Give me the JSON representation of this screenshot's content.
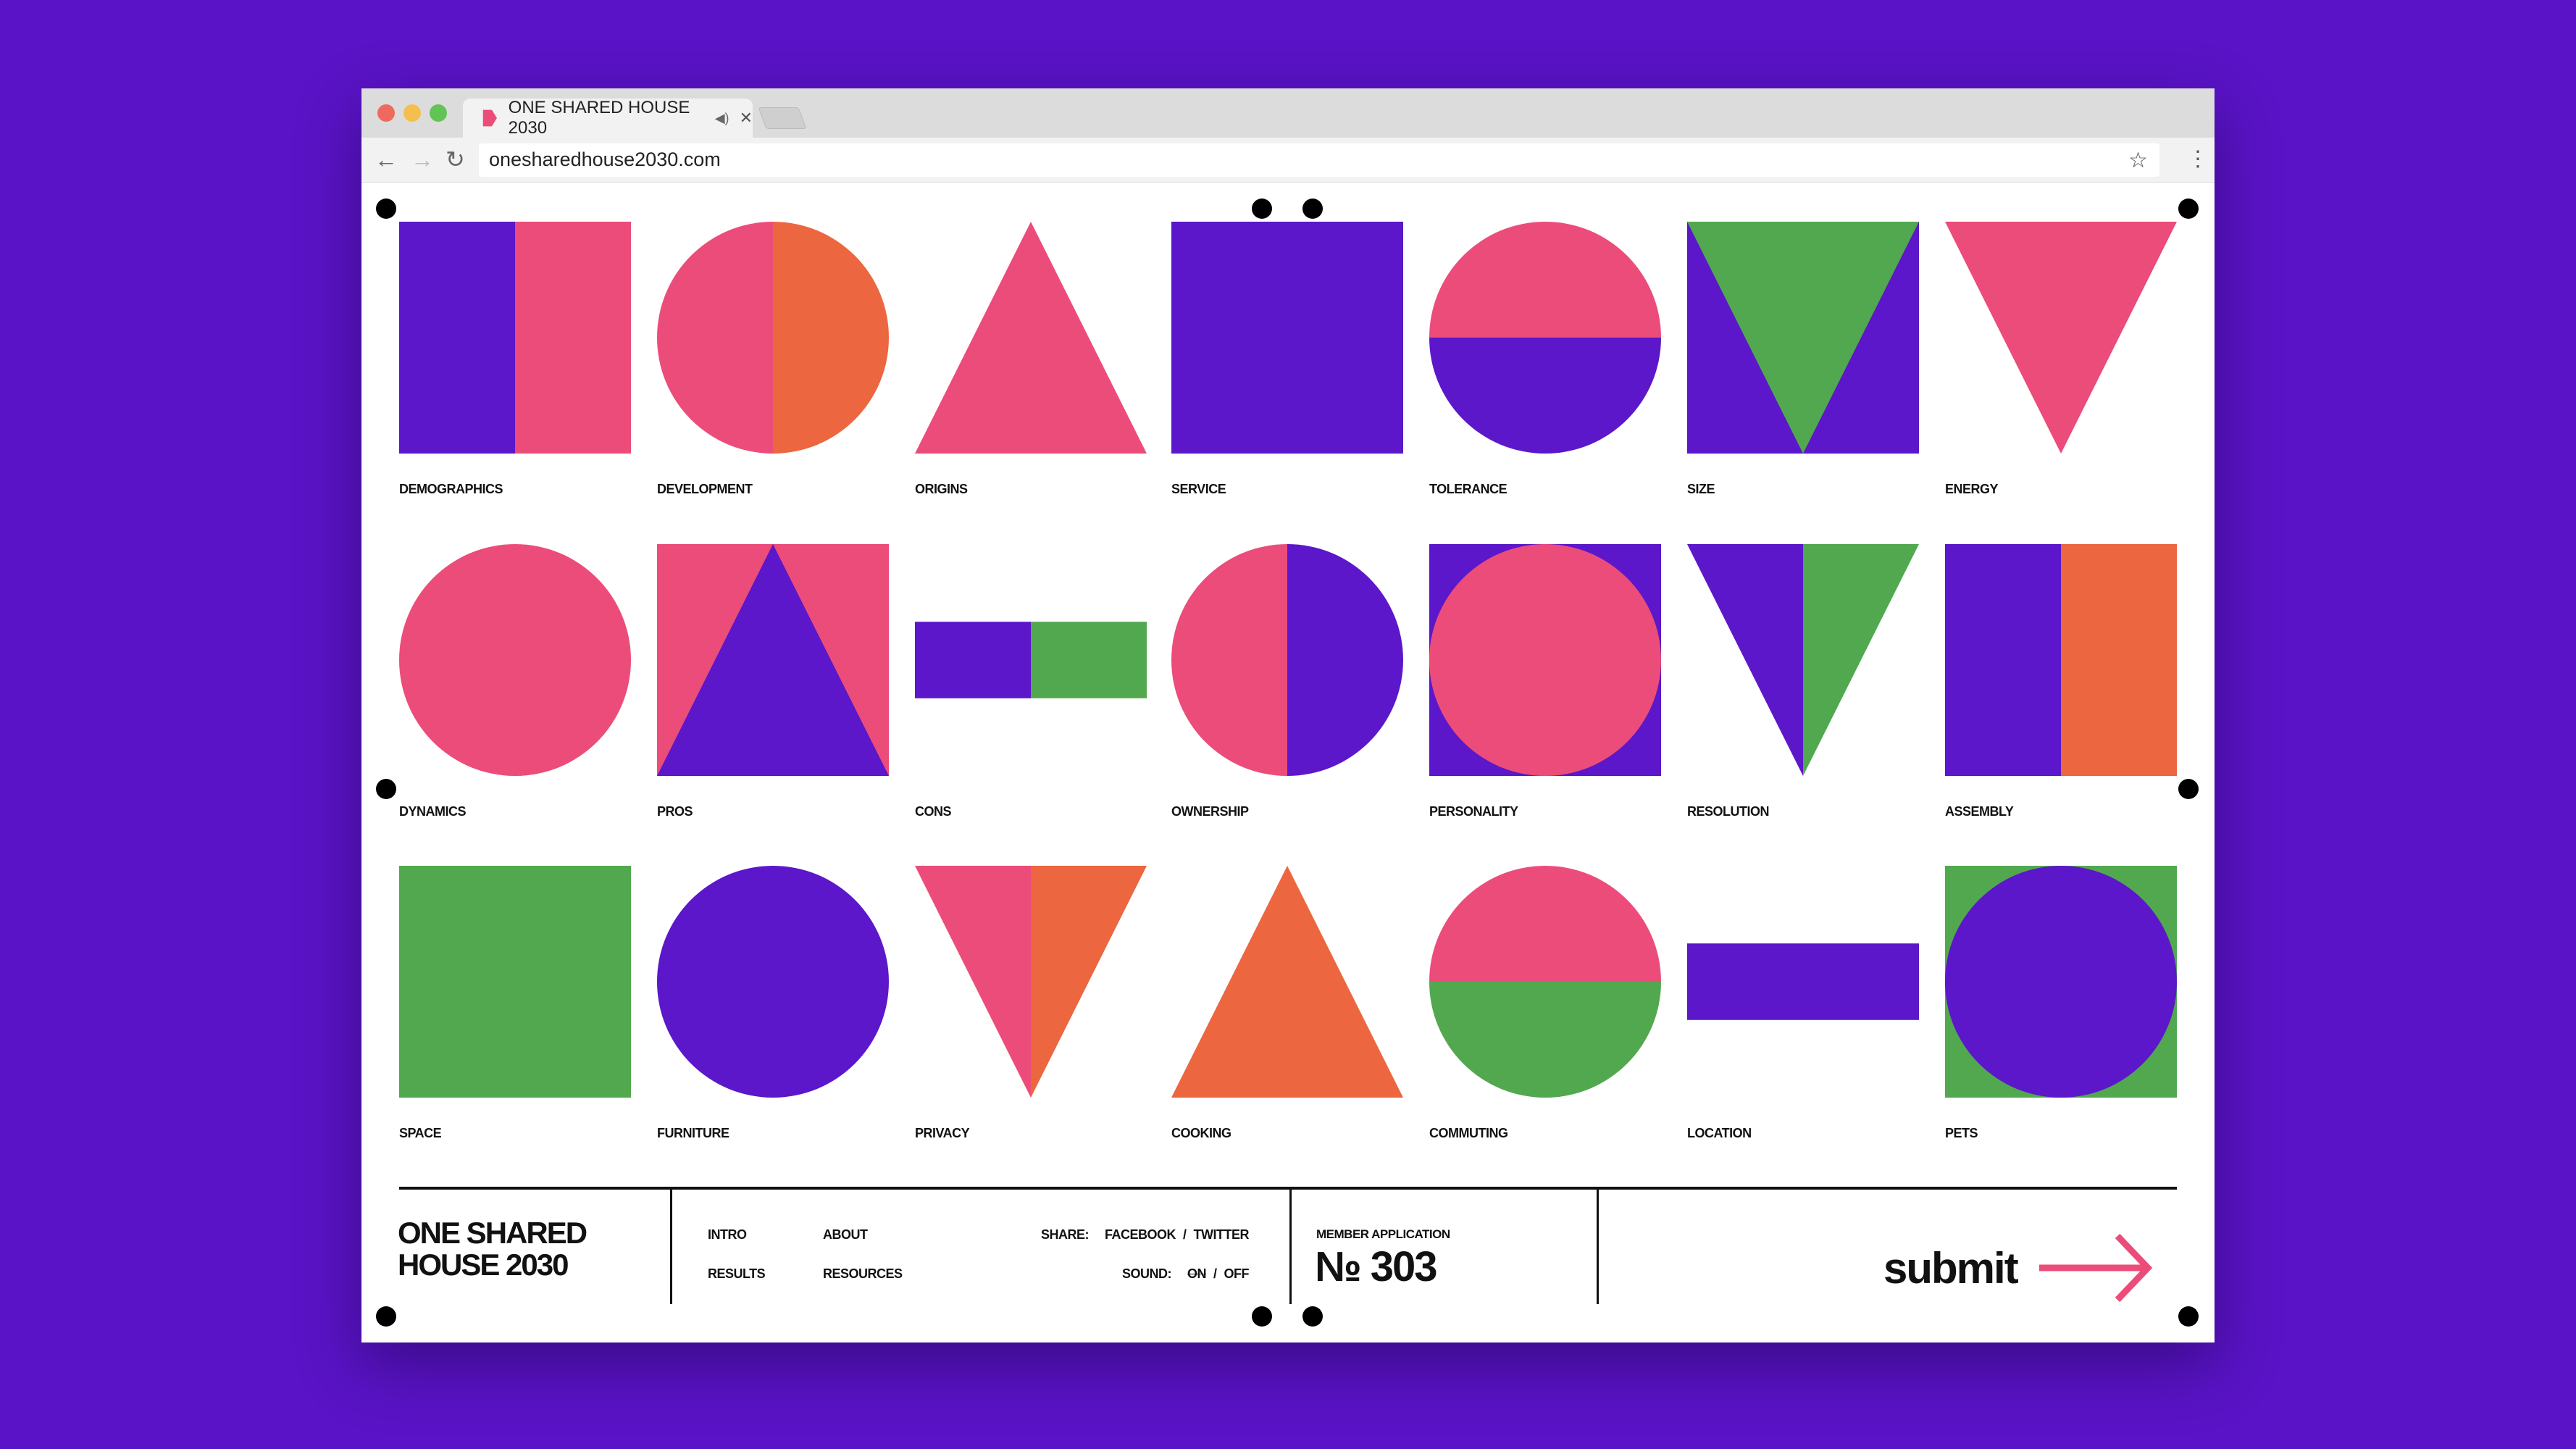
{
  "browser": {
    "tab_title": "ONE SHARED HOUSE 2030",
    "url": "onesharedhouse2030.com",
    "icons": [
      "back-icon",
      "forward-icon",
      "reload-icon",
      "star-icon",
      "menu-icon",
      "speaker-icon",
      "close-icon"
    ]
  },
  "colors": {
    "background": "#5a13c6",
    "purple": "#5b17c9",
    "pink": "#ec4c7a",
    "orange": "#ec6640",
    "green": "#52a84f"
  },
  "grid": [
    {
      "label": "DEMOGRAPHICS",
      "shape": "square-split-v",
      "colors": [
        "purple",
        "pink"
      ]
    },
    {
      "label": "DEVELOPMENT",
      "shape": "circle-split-v",
      "colors": [
        "pink",
        "orange"
      ]
    },
    {
      "label": "ORIGINS",
      "shape": "triangle-up",
      "colors": [
        "pink"
      ]
    },
    {
      "label": "SERVICE",
      "shape": "square",
      "colors": [
        "purple"
      ]
    },
    {
      "label": "TOLERANCE",
      "shape": "circle-split-h",
      "colors": [
        "pink",
        "purple"
      ]
    },
    {
      "label": "SIZE",
      "shape": "square-with-triangle-down",
      "colors": [
        "purple",
        "green"
      ]
    },
    {
      "label": "ENERGY",
      "shape": "triangle-down",
      "colors": [
        "pink"
      ]
    },
    {
      "label": "DYNAMICS",
      "shape": "circle",
      "colors": [
        "pink"
      ]
    },
    {
      "label": "PROS",
      "shape": "square-with-triangle-up",
      "colors": [
        "pink",
        "purple"
      ]
    },
    {
      "label": "CONS",
      "shape": "bar-split-v",
      "colors": [
        "purple",
        "green"
      ]
    },
    {
      "label": "OWNERSHIP",
      "shape": "circle-split-v",
      "colors": [
        "pink",
        "purple"
      ]
    },
    {
      "label": "PERSONALITY",
      "shape": "square-with-circle",
      "colors": [
        "purple",
        "pink"
      ]
    },
    {
      "label": "RESOLUTION",
      "shape": "triangle-down-split",
      "colors": [
        "purple",
        "green"
      ]
    },
    {
      "label": "ASSEMBLY",
      "shape": "square-split-v",
      "colors": [
        "purple",
        "orange"
      ]
    },
    {
      "label": "SPACE",
      "shape": "square",
      "colors": [
        "green"
      ]
    },
    {
      "label": "FURNITURE",
      "shape": "circle",
      "colors": [
        "purple"
      ]
    },
    {
      "label": "PRIVACY",
      "shape": "triangle-down-split",
      "colors": [
        "pink",
        "orange"
      ]
    },
    {
      "label": "COOKING",
      "shape": "triangle-up",
      "colors": [
        "orange"
      ]
    },
    {
      "label": "COMMUTING",
      "shape": "circle-split-h",
      "colors": [
        "pink",
        "green"
      ]
    },
    {
      "label": "LOCATION",
      "shape": "bar",
      "colors": [
        "purple"
      ]
    },
    {
      "label": "PETS",
      "shape": "square-with-circle",
      "colors": [
        "green",
        "purple"
      ]
    }
  ],
  "footer": {
    "title_line1": "ONE SHARED",
    "title_line2": "HOUSE 2030",
    "nav": {
      "intro": "INTRO",
      "about": "ABOUT",
      "results": "RESULTS",
      "resources": "RESOURCES"
    },
    "share_label": "SHARE:",
    "facebook": "FACEBOOK",
    "sep": "/",
    "twitter": "TWITTER",
    "sound_label": "SOUND:",
    "sound_on": "ON",
    "sound_off": "OFF",
    "member_label": "MEMBER APPLICATION",
    "member_number": "№ 303",
    "submit": "submit"
  }
}
